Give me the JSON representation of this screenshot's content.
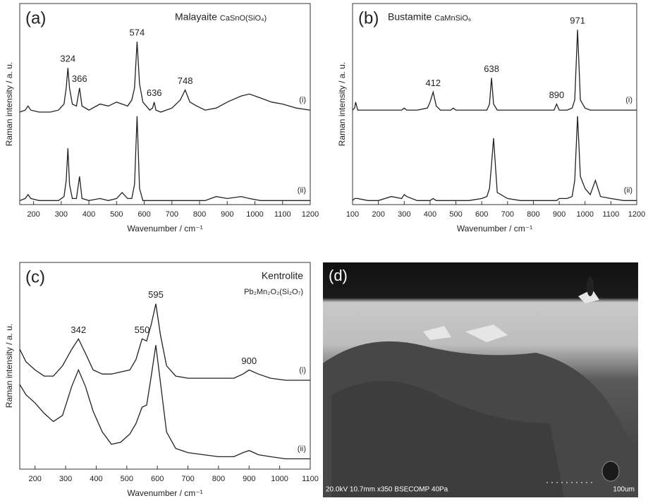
{
  "chart_data": [
    {
      "type": "line",
      "panel": "(a)",
      "title": "Malayaite",
      "formula": "CaSnO(SiO₄)",
      "x_label": "Wavenumber / cm⁻¹",
      "y_label": "Raman intensity / a. u.",
      "xlim": [
        150,
        1200
      ],
      "xticks": [
        200,
        300,
        400,
        500,
        600,
        700,
        800,
        900,
        1000,
        1100,
        1200
      ],
      "ylim": [
        0,
        100
      ],
      "x": [
        150,
        170,
        180,
        190,
        220,
        260,
        290,
        310,
        318,
        324,
        330,
        340,
        355,
        366,
        375,
        400,
        440,
        470,
        500,
        520,
        540,
        555,
        565,
        574,
        583,
        595,
        620,
        630,
        636,
        642,
        660,
        700,
        730,
        748,
        765,
        790,
        820,
        860,
        900,
        950,
        980,
        1020,
        1060,
        1100,
        1150,
        1200
      ],
      "series": [
        {
          "name": "(i)",
          "color": "#222222",
          "values": [
            46,
            47,
            49,
            47,
            46,
            46,
            47,
            50,
            58,
            68,
            58,
            50,
            49,
            58,
            49,
            47,
            50,
            49,
            51,
            50,
            49,
            52,
            58,
            81,
            60,
            51,
            47,
            48,
            51,
            47,
            46,
            48,
            52,
            57,
            51,
            49,
            47,
            48,
            51,
            54,
            55,
            53,
            51,
            50,
            48,
            47
          ]
        },
        {
          "name": "(ii)",
          "color": "#222222",
          "values": [
            2,
            3,
            5,
            3,
            2,
            2,
            2,
            4,
            12,
            28,
            10,
            3,
            3,
            14,
            3,
            2,
            3,
            2,
            3,
            6,
            3,
            3,
            10,
            44,
            8,
            2,
            2,
            2,
            2,
            2,
            2,
            2,
            2,
            2,
            2,
            2,
            2,
            4,
            3,
            4,
            3,
            2,
            2,
            2,
            2,
            2
          ]
        }
      ],
      "peak_labels": [
        324,
        366,
        574,
        636,
        748
      ]
    },
    {
      "type": "line",
      "panel": "(b)",
      "title": "Bustamite",
      "formula": "CaMnSiO₆",
      "x_label": "Wavenumber / cm⁻¹",
      "y_label": "Raman intensity / a. u.",
      "xlim": [
        100,
        1200
      ],
      "xticks": [
        100,
        200,
        300,
        400,
        500,
        600,
        700,
        800,
        900,
        1000,
        1100,
        1200
      ],
      "ylim": [
        0,
        100
      ],
      "x": [
        100,
        108,
        112,
        120,
        160,
        200,
        250,
        290,
        300,
        310,
        350,
        390,
        400,
        412,
        424,
        440,
        480,
        490,
        500,
        550,
        600,
        620,
        630,
        638,
        646,
        660,
        700,
        750,
        800,
        850,
        880,
        890,
        900,
        930,
        950,
        960,
        971,
        982,
        1000,
        1020,
        1040,
        1060,
        1100,
        1150,
        1200
      ],
      "series": [
        {
          "name": "(i)",
          "color": "#222222",
          "values": [
            47,
            48,
            51,
            47,
            47,
            47,
            47,
            47,
            48,
            47,
            47,
            48,
            51,
            56,
            49,
            47,
            47,
            48,
            47,
            47,
            47,
            47,
            50,
            63,
            50,
            47,
            47,
            47,
            47,
            47,
            47,
            50,
            47,
            47,
            48,
            52,
            87,
            52,
            48,
            47,
            47,
            47,
            47,
            47,
            47
          ]
        },
        {
          "name": "(ii)",
          "color": "#222222",
          "values": [
            2,
            3,
            3,
            3,
            2,
            2,
            4,
            3,
            5,
            4,
            2,
            2,
            2,
            3,
            2,
            2,
            2,
            2,
            2,
            2,
            3,
            4,
            8,
            20,
            33,
            6,
            3,
            2,
            2,
            2,
            2,
            2,
            3,
            3,
            4,
            12,
            44,
            14,
            8,
            5,
            12,
            4,
            3,
            2,
            2
          ]
        }
      ],
      "peak_labels": [
        412,
        638,
        890,
        971
      ]
    },
    {
      "type": "line",
      "panel": "(c)",
      "title": "Kentrolite",
      "formula": "Pb₂Mn₂O₂(Si₂O₇)",
      "x_label": "Wavenumber / cm⁻¹",
      "y_label": "Raman intensity / a. u.",
      "xlim": [
        150,
        1100
      ],
      "xticks": [
        200,
        300,
        400,
        500,
        600,
        700,
        800,
        900,
        1000,
        1100
      ],
      "ylim": [
        0,
        100
      ],
      "x": [
        150,
        170,
        200,
        230,
        260,
        290,
        320,
        342,
        365,
        390,
        420,
        450,
        480,
        510,
        530,
        550,
        565,
        580,
        595,
        610,
        630,
        660,
        700,
        750,
        800,
        850,
        880,
        900,
        930,
        970,
        1020,
        1060,
        1100
      ],
      "series": [
        {
          "name": "(i)",
          "color": "#222222",
          "values": [
            58,
            52,
            48,
            45,
            45,
            50,
            58,
            63,
            56,
            48,
            46,
            46,
            47,
            48,
            53,
            63,
            62,
            70,
            80,
            65,
            50,
            45,
            44,
            44,
            44,
            44,
            46,
            48,
            46,
            44,
            43,
            43,
            43
          ]
        },
        {
          "name": "(ii)",
          "color": "#222222",
          "values": [
            41,
            36,
            32,
            27,
            23,
            26,
            40,
            48,
            40,
            28,
            18,
            12,
            13,
            17,
            22,
            30,
            31,
            45,
            60,
            42,
            18,
            10,
            8,
            7,
            6,
            6,
            8,
            9,
            7,
            6,
            5,
            5,
            5
          ]
        }
      ],
      "peak_labels": [
        342,
        550,
        595,
        900
      ]
    }
  ],
  "image_panel": {
    "label": "(d)",
    "caption": "20.0kV 10.7mm x350 BSECOMP 40Pa",
    "scale": "100um"
  }
}
